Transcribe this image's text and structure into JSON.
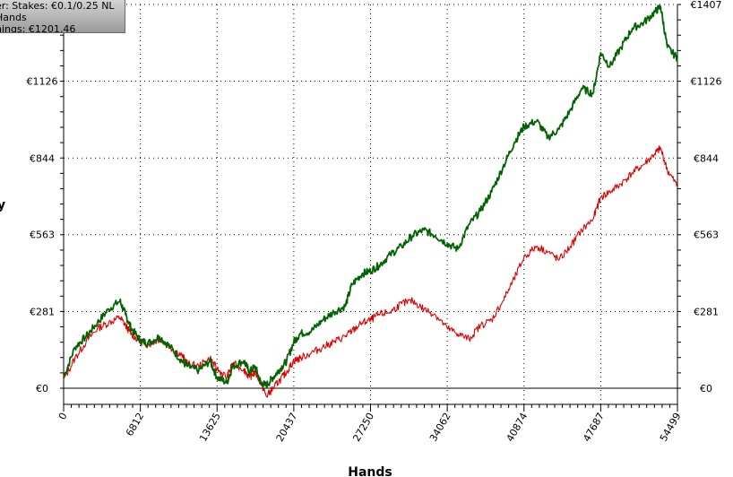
{
  "legend": {
    "line1": "er: Stakes: €0.1/0.25 NL",
    "line2": " Hands",
    "line3": "nings: €1201.46"
  },
  "left_glyph": "y",
  "colors": {
    "winnings": "#006400",
    "second": "#e00000",
    "grid": "#000000"
  },
  "chart_data": {
    "type": "line",
    "xlabel": "Hands",
    "ylabel": "",
    "x_ticks": [
      0,
      6812,
      13625,
      20437,
      27250,
      34062,
      40874,
      47687,
      54499
    ],
    "y_ticks": [
      0,
      281,
      563,
      844,
      1126,
      1407
    ],
    "y_tick_labels": [
      "€0",
      "€281",
      "€563",
      "€844",
      "€1126",
      "€1407"
    ],
    "xlim": [
      0,
      54499
    ],
    "ylim": [
      -80,
      1407
    ],
    "grid": true,
    "series": [
      {
        "color": "#006400",
        "x": [
          0,
          1000,
          2000,
          3000,
          4000,
          5000,
          5500,
          6000,
          6812,
          7500,
          8500,
          9500,
          10500,
          11000,
          12000,
          13000,
          13625,
          14500,
          15000,
          16000,
          16500,
          17000,
          17500,
          18000,
          18600,
          19200,
          19800,
          20437,
          21000,
          22000,
          23000,
          24000,
          25000,
          25600,
          26500,
          27250,
          28000,
          29000,
          30000,
          31000,
          32000,
          33000,
          34062,
          35000,
          36000,
          37000,
          38000,
          39000,
          40000,
          40874,
          42000,
          43000,
          44000,
          45000,
          46000,
          47000,
          47687,
          48500,
          49500,
          50500,
          51500,
          52500,
          53000,
          53600,
          54499
        ],
        "y": [
          40,
          150,
          190,
          240,
          290,
          320,
          270,
          220,
          175,
          165,
          190,
          150,
          100,
          80,
          65,
          100,
          40,
          20,
          80,
          100,
          60,
          80,
          20,
          10,
          40,
          70,
          100,
          170,
          200,
          210,
          250,
          280,
          300,
          380,
          420,
          430,
          450,
          490,
          520,
          560,
          580,
          560,
          530,
          510,
          600,
          650,
          720,
          810,
          900,
          960,
          980,
          920,
          950,
          1020,
          1100,
          1080,
          1230,
          1180,
          1250,
          1320,
          1340,
          1380,
          1400,
          1250,
          1210
        ]
      },
      {
        "color": "#e00000",
        "x": [
          0,
          1000,
          2000,
          3000,
          4000,
          5000,
          5500,
          6000,
          6812,
          7500,
          8500,
          9500,
          10500,
          11000,
          12000,
          13000,
          13625,
          14500,
          15000,
          16000,
          16500,
          17000,
          17500,
          18000,
          18600,
          19200,
          19800,
          20437,
          21000,
          22000,
          23000,
          24000,
          25000,
          25600,
          26500,
          27250,
          28000,
          29000,
          30000,
          31000,
          32000,
          33000,
          34062,
          35000,
          36000,
          37000,
          38000,
          39000,
          40000,
          40874,
          42000,
          43000,
          44000,
          45000,
          46000,
          47000,
          47687,
          48500,
          49500,
          50500,
          51500,
          52500,
          53000,
          53600,
          54499
        ],
        "y": [
          30,
          110,
          170,
          220,
          240,
          260,
          230,
          200,
          170,
          160,
          180,
          150,
          120,
          90,
          80,
          110,
          70,
          40,
          90,
          70,
          40,
          60,
          20,
          -30,
          0,
          30,
          60,
          100,
          110,
          130,
          150,
          170,
          190,
          210,
          240,
          250,
          270,
          280,
          310,
          320,
          290,
          270,
          220,
          200,
          180,
          230,
          250,
          320,
          400,
          480,
          520,
          500,
          470,
          520,
          580,
          620,
          700,
          720,
          750,
          790,
          820,
          860,
          880,
          800,
          740
        ]
      }
    ]
  }
}
